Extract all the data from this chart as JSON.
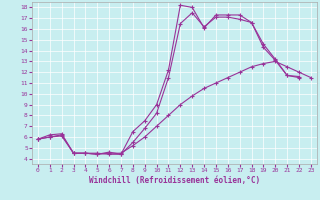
{
  "xlabel": "Windchill (Refroidissement éolien,°C)",
  "background_color": "#c8eef0",
  "line_color": "#993399",
  "xlim": [
    -0.5,
    23.5
  ],
  "ylim": [
    3.5,
    18.5
  ],
  "xticks": [
    0,
    1,
    2,
    3,
    4,
    5,
    6,
    7,
    8,
    9,
    10,
    11,
    12,
    13,
    14,
    15,
    16,
    17,
    18,
    19,
    20,
    21,
    22,
    23
  ],
  "yticks": [
    4,
    5,
    6,
    7,
    8,
    9,
    10,
    11,
    12,
    13,
    14,
    15,
    16,
    17,
    18
  ],
  "line1_x": [
    0,
    1,
    2,
    3,
    4,
    5,
    6,
    7,
    8,
    9,
    10,
    11,
    12,
    13,
    14,
    15,
    16,
    17,
    18,
    19,
    20,
    21,
    22
  ],
  "line1_y": [
    5.8,
    6.2,
    6.3,
    4.5,
    4.5,
    4.5,
    4.4,
    4.4,
    6.5,
    7.5,
    9.0,
    12.2,
    18.2,
    18.0,
    16.1,
    17.3,
    17.3,
    17.3,
    16.6,
    14.3,
    13.1,
    11.7,
    11.5
  ],
  "line2_x": [
    0,
    1,
    2,
    3,
    4,
    5,
    6,
    7,
    8,
    9,
    10,
    11,
    12,
    13,
    14,
    15,
    16,
    17,
    18,
    19,
    20,
    21,
    22
  ],
  "line2_y": [
    5.8,
    6.0,
    6.2,
    4.5,
    4.5,
    4.4,
    4.6,
    4.4,
    5.5,
    6.8,
    8.2,
    11.5,
    16.5,
    17.5,
    16.2,
    17.1,
    17.1,
    16.9,
    16.6,
    14.6,
    13.2,
    11.7,
    11.6
  ],
  "line3_x": [
    0,
    1,
    2,
    3,
    4,
    5,
    6,
    7,
    8,
    9,
    10,
    11,
    12,
    13,
    14,
    15,
    16,
    17,
    18,
    19,
    20,
    21,
    22,
    23
  ],
  "line3_y": [
    5.8,
    6.0,
    6.1,
    4.5,
    4.5,
    4.4,
    4.5,
    4.5,
    5.2,
    6.0,
    7.0,
    8.0,
    9.0,
    9.8,
    10.5,
    11.0,
    11.5,
    12.0,
    12.5,
    12.8,
    13.0,
    12.5,
    12.0,
    11.5
  ]
}
